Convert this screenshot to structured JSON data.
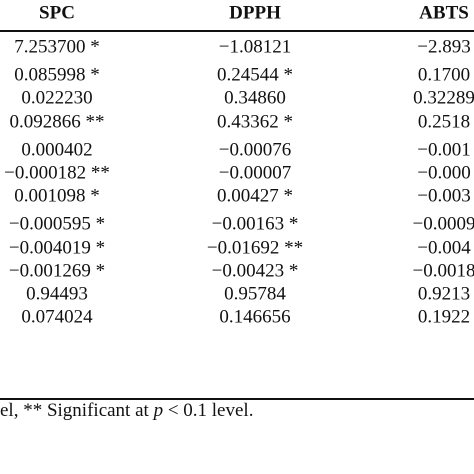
{
  "table": {
    "header": [
      "SPC",
      "DPPH",
      "ABTS"
    ],
    "groups": [
      [
        [
          "7.253700 *",
          "−1.08121",
          "−2.893"
        ]
      ],
      [
        [
          "0.085998 *",
          "0.24544 *",
          "0.1700"
        ],
        [
          "0.022230",
          "0.34860",
          "0.32289"
        ],
        [
          "0.092866 **",
          "0.43362 *",
          "0.2518"
        ]
      ],
      [
        [
          "0.000402",
          "−0.00076",
          "−0.001"
        ],
        [
          "−0.000182 **",
          "−0.00007",
          "−0.000"
        ],
        [
          "0.001098 *",
          "0.00427 *",
          "−0.003"
        ]
      ],
      [
        [
          "−0.000595 *",
          "−0.00163 *",
          "−0.0009"
        ],
        [
          "−0.004019 *",
          "−0.01692 **",
          "−0.004"
        ],
        [
          "−0.001269 *",
          "−0.00423 *",
          "−0.0018"
        ],
        [
          "0.94493",
          "0.95784",
          "0.9213"
        ],
        [
          "0.074024",
          "0.146656",
          "0.1922"
        ]
      ]
    ]
  },
  "footnote": [
    "el, ** Significant at ",
    "p",
    " < 0.1 level."
  ]
}
